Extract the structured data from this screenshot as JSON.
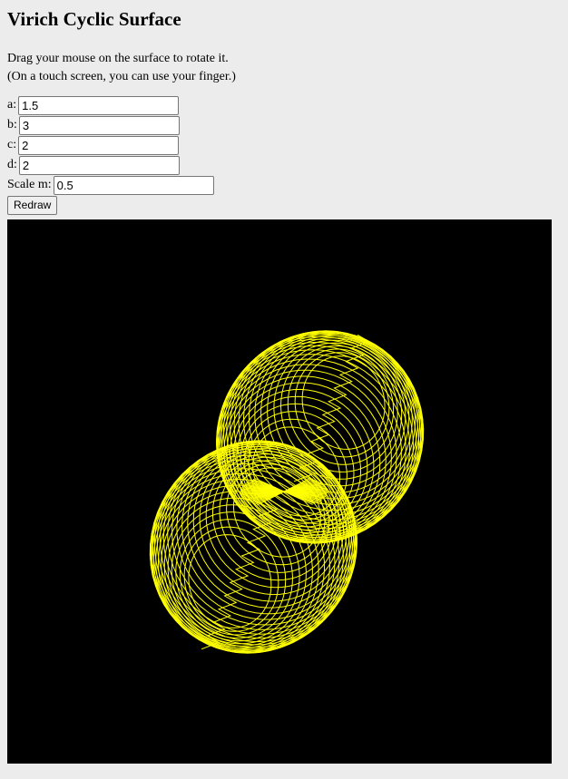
{
  "page": {
    "title": "Virich Cyclic Surface",
    "instructions": [
      "Drag your mouse on the surface to rotate it.",
      "(On a touch screen, you can use your finger.)"
    ]
  },
  "params": {
    "a": {
      "label": "a:",
      "value": "1.5"
    },
    "b": {
      "label": "b:",
      "value": "3"
    },
    "c": {
      "label": "c:",
      "value": "2"
    },
    "d": {
      "label": "d:",
      "value": "2"
    },
    "m": {
      "label": "Scale m:",
      "value": "0.5"
    }
  },
  "redraw_label": "Redraw",
  "surface": {
    "background": "#000000",
    "line_color": "#ffff00"
  }
}
